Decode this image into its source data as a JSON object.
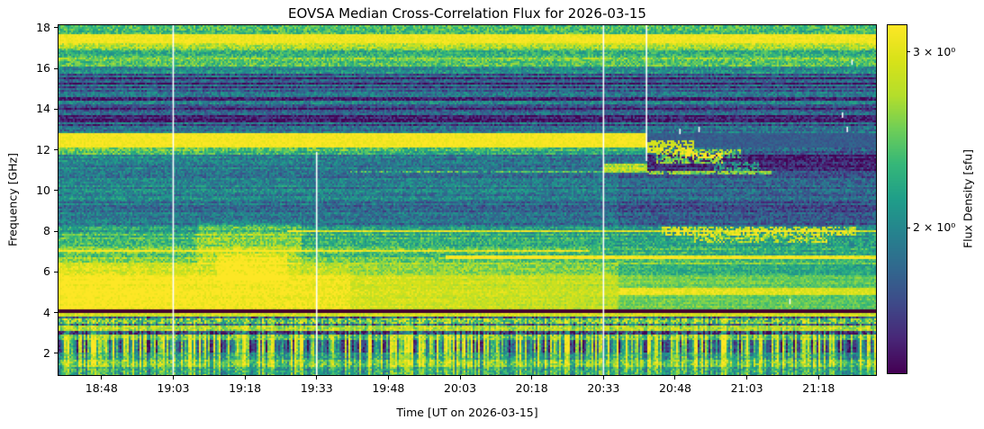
{
  "chart_data": {
    "type": "heatmap",
    "title": "EOVSA Median Cross-Correlation Flux for 2026-03-15",
    "xlabel": "Time [UT on 2026-03-15]",
    "ylabel": "Frequency [GHz]",
    "x_range": [
      "18:39",
      "21:30"
    ],
    "y_range_ghz": [
      0.94,
      18.12
    ],
    "x_tick_labels": [
      "18:48",
      "19:03",
      "19:18",
      "19:33",
      "19:48",
      "20:03",
      "20:18",
      "20:33",
      "20:48",
      "21:03",
      "21:18"
    ],
    "y_tick_values": [
      2,
      4,
      6,
      8,
      10,
      12,
      14,
      16,
      18
    ],
    "grid": false,
    "colorbar": {
      "label": "Flux Density [sfu]",
      "colormap": "viridis",
      "scale": "log",
      "vmin_sfu": 1.43,
      "vmax_sfu": 3.19,
      "tick_labels": [
        "3 × 10⁰",
        "2 × 10⁰"
      ],
      "tick_values": [
        3,
        2
      ]
    },
    "bands": [
      {
        "f": [
          17.7,
          18.12
        ],
        "v0": 0.62,
        "n": 0.15,
        "hs": 0.1
      },
      {
        "f": [
          17.28,
          17.7
        ],
        "v0": 0.97,
        "n": 0.05
      },
      {
        "f": [
          16.85,
          17.28
        ],
        "v0": 0.78,
        "n": 0.14,
        "hs": 0.1
      },
      {
        "f": [
          16.55,
          16.85
        ],
        "v0": 0.6,
        "n": 0.14,
        "hs": 0.08
      },
      {
        "f": [
          16.1,
          16.55
        ],
        "v0": 0.68,
        "n": 0.14,
        "hs": 0.08
      },
      {
        "f": [
          15.7,
          16.1
        ],
        "v0": 0.45,
        "n": 0.14,
        "hs": 0.12
      },
      {
        "f": [
          13.1,
          15.7
        ],
        "v0": 0.22,
        "n": 0.14,
        "hs": 0.2
      },
      {
        "f": [
          12.78,
          13.1
        ],
        "v0": 0.31,
        "n": 0.14,
        "hs": 0.12
      },
      {
        "f": [
          12.07,
          12.78
        ],
        "v0": 0.98,
        "n": 0.05
      },
      {
        "f": [
          11.75,
          12.07
        ],
        "v0": 0.7,
        "v1": 0.5,
        "n": 0.15,
        "hs": 0.12
      },
      {
        "f": [
          11.4,
          11.75
        ],
        "v0": 0.46,
        "v1": 0.3,
        "n": 0.14,
        "hs": 0.1
      },
      {
        "f": [
          8.3,
          11.4
        ],
        "v0": 0.38,
        "v1": 0.31,
        "n": 0.13,
        "hs": 0.1
      },
      {
        "f": [
          7.9,
          8.3
        ],
        "v0": 0.5,
        "v1": 0.4,
        "n": 0.14,
        "hs": 0.08
      },
      {
        "f": [
          7.25,
          7.9
        ],
        "v0": 0.62,
        "v1": 0.5,
        "n": 0.14,
        "hs": 0.08
      },
      {
        "f": [
          6.5,
          7.25
        ],
        "v0": 0.72,
        "v1": 0.56,
        "n": 0.13,
        "hs": 0.08
      },
      {
        "f": [
          5.85,
          6.5
        ],
        "v0": 0.86,
        "v1": 0.66,
        "n": 0.11,
        "hs": 0.05
      },
      {
        "f": [
          4.14,
          5.85
        ],
        "v0": 0.95,
        "v1": 0.78,
        "n": 0.08,
        "hs": 0.04
      },
      {
        "f": [
          3.96,
          4.14
        ],
        "color": "#45012f"
      },
      {
        "f": [
          3.8,
          3.96
        ],
        "v0": 0.88,
        "n": 0.1
      },
      {
        "f": [
          3.68,
          3.8
        ],
        "v0": 0.25,
        "n": 0.2,
        "vs": 0.2
      },
      {
        "f": [
          3.45,
          3.68
        ],
        "v0": 0.7,
        "n": 0.25,
        "vs": 0.15
      },
      {
        "f": [
          3.33,
          3.45
        ],
        "v0": 0.3,
        "n": 0.25,
        "vs": 0.2
      },
      {
        "f": [
          3.12,
          3.33
        ],
        "v0": 0.82,
        "n": 0.15,
        "vs": 0.1
      },
      {
        "f": [
          2.95,
          3.12
        ],
        "v0": 0.2,
        "n": 0.2,
        "vs": 0.3
      },
      {
        "f": [
          2.62,
          2.95
        ],
        "v0": 0.75,
        "n": 0.18,
        "vs": 0.3
      },
      {
        "f": [
          2.05,
          2.62
        ],
        "v0": 0.55,
        "n": 0.12,
        "vs": 0.55
      },
      {
        "f": [
          1.7,
          2.05
        ],
        "v0": 0.6,
        "n": 0.15,
        "vs": 0.3
      },
      {
        "f": [
          1.35,
          1.7
        ],
        "v0": 0.75,
        "n": 0.16,
        "vs": 0.25
      },
      {
        "f": [
          0.94,
          1.35
        ],
        "v0": 0.58,
        "n": 0.16,
        "vs": 0.2
      }
    ],
    "features": [
      {
        "t": [
          "20:42",
          "21:30"
        ],
        "f": [
          12.07,
          12.78
        ],
        "dv": -0.72
      },
      {
        "t": [
          "20:42",
          "21:30"
        ],
        "f": [
          11.0,
          12.07
        ],
        "dv": -0.22
      },
      {
        "t": [
          "20:36",
          "21:30"
        ],
        "f": [
          8.3,
          11.0
        ],
        "dv": -0.06
      },
      {
        "t": [
          "20:33",
          "20:42"
        ],
        "f": [
          10.9,
          11.35
        ],
        "dv": 0.5
      },
      {
        "t": [
          "20:42",
          "20:52"
        ],
        "f": [
          11.85,
          12.5
        ],
        "dv": 0.62,
        "p": 0.75
      },
      {
        "t": [
          "20:44",
          "20:58"
        ],
        "f": [
          11.3,
          11.85
        ],
        "dv": 0.6,
        "p": 0.7
      },
      {
        "t": [
          "20:50",
          "21:02"
        ],
        "f": [
          11.55,
          12.05
        ],
        "dv": 0.5,
        "p": 0.6
      },
      {
        "t": [
          "20:42",
          "21:08"
        ],
        "f": [
          10.82,
          11.0
        ],
        "dv": 0.5,
        "p": 0.85
      },
      {
        "t": [
          "20:56",
          "21:06"
        ],
        "f": [
          11.0,
          11.4
        ],
        "dv": 0.38,
        "p": 0.5
      },
      {
        "t": [
          "19:40",
          "20:33"
        ],
        "f": [
          10.88,
          11.0
        ],
        "dv": 0.3,
        "p": 0.8
      },
      {
        "t": [
          "19:27",
          "21:30"
        ],
        "f": [
          7.98,
          8.08
        ],
        "dv": 0.55
      },
      {
        "t": [
          "18:39",
          "20:30"
        ],
        "f": [
          6.95,
          7.05
        ],
        "dv": 0.4
      },
      {
        "t": [
          "20:00",
          "21:30"
        ],
        "f": [
          6.67,
          6.77
        ],
        "dv": 0.45
      },
      {
        "t": [
          "20:45",
          "21:26"
        ],
        "f": [
          7.8,
          8.25
        ],
        "dv": 0.42,
        "p": 0.6
      },
      {
        "t": [
          "20:52",
          "21:20"
        ],
        "f": [
          7.45,
          7.8
        ],
        "dv": 0.35,
        "p": 0.5
      },
      {
        "t": [
          "19:08",
          "19:30"
        ],
        "f": [
          6.4,
          8.4
        ],
        "dv": 0.15
      },
      {
        "t": [
          "19:12",
          "19:27"
        ],
        "f": [
          5.6,
          6.9
        ],
        "dv": 0.15
      },
      {
        "t": [
          "18:39",
          "19:40"
        ],
        "f": [
          4.14,
          6.4
        ],
        "dv": 0.07
      },
      {
        "t": [
          "20:36",
          "21:30"
        ],
        "f": [
          4.14,
          6.4
        ],
        "dv": -0.12
      },
      {
        "t": [
          "20:36",
          "21:30"
        ],
        "f": [
          4.9,
          5.25
        ],
        "dv": 0.22
      }
    ],
    "gap_lines": [
      {
        "time": "19:03",
        "f": [
          0.94,
          18.12
        ]
      },
      {
        "time": "19:33",
        "f": [
          0.94,
          11.9
        ]
      },
      {
        "time": "20:33",
        "f": [
          0.94,
          18.12
        ]
      },
      {
        "time": "20:42",
        "f": [
          11.45,
          18.12
        ]
      }
    ],
    "bad_pixels": [
      {
        "time": "21:25",
        "freq": 16.3
      },
      {
        "time": "21:23",
        "freq": 13.7
      },
      {
        "time": "21:24",
        "freq": 13.0
      },
      {
        "time": "20:53",
        "freq": 13.0
      },
      {
        "time": "20:49",
        "freq": 12.9
      },
      {
        "time": "21:12",
        "freq": 4.55
      }
    ]
  }
}
